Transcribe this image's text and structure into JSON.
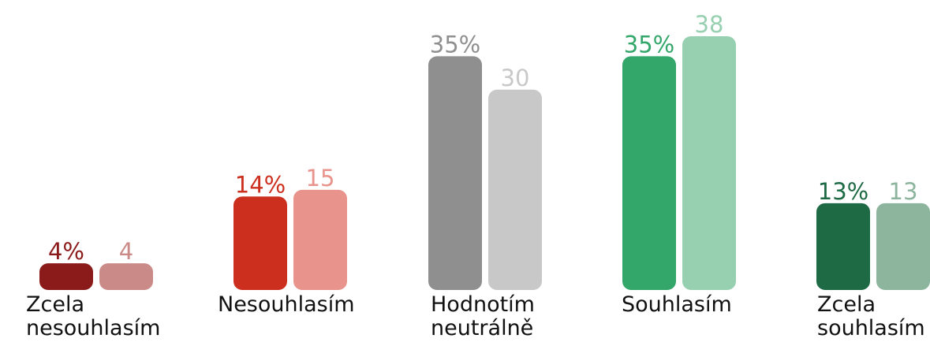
{
  "chart_data": {
    "type": "bar",
    "categories": [
      "Zcela\nnesouhlasím",
      "Nesouhlasím",
      "Hodnotím\nneutrálně",
      "Souhlasím",
      "Zcela\nsouhlasím"
    ],
    "series": [
      {
        "values": [
          4,
          14,
          35,
          35,
          13
        ],
        "labels": [
          "4%",
          "14%",
          "35%",
          "35%",
          "13%"
        ],
        "colors": [
          "#8b1a1a",
          "#cc2f1e",
          "#8f8f8f",
          "#33a66a",
          "#1e6a45"
        ],
        "label_colors": [
          "#8b1a1a",
          "#cc2f1e",
          "#8f8f8f",
          "#33a66a",
          "#1e6a45"
        ]
      },
      {
        "values": [
          4,
          15,
          30,
          38,
          13
        ],
        "labels": [
          "4",
          "15",
          "30",
          "38",
          "13"
        ],
        "colors": [
          "#c98a88",
          "#e8948c",
          "#c8c8c8",
          "#97d0b0",
          "#8db59e"
        ],
        "label_colors": [
          "#c98a88",
          "#e8948c",
          "#c8c8c8",
          "#97d0b0",
          "#8db59e"
        ]
      }
    ],
    "ylim": [
      0,
      38
    ],
    "grid": false,
    "legend": "none"
  }
}
